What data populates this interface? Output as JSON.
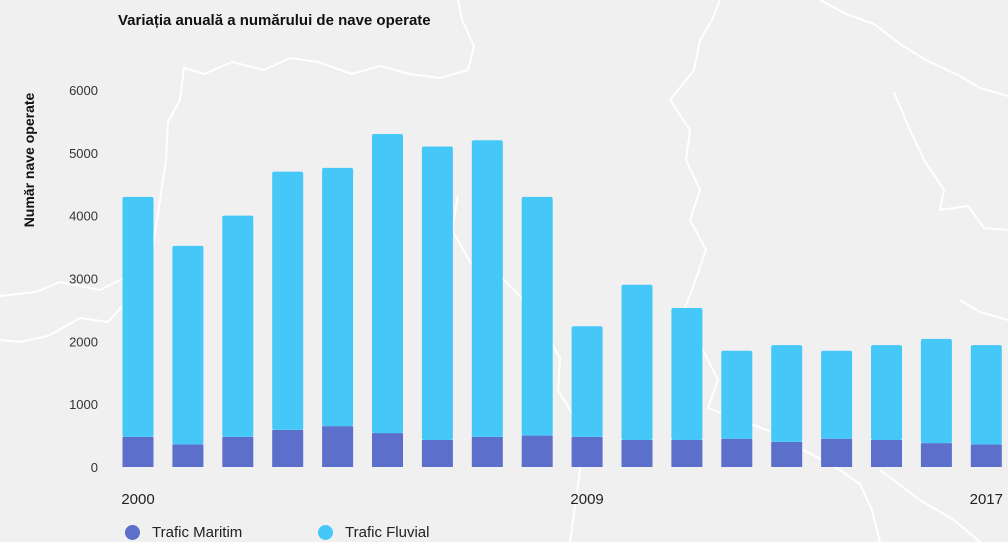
{
  "chart_data": {
    "type": "bar",
    "stacked": true,
    "title": "Variația anuală a numărului de nave operate",
    "xlabel": "",
    "ylabel": "Număr nave operate",
    "ylim": [
      0,
      6000
    ],
    "yticks": [
      0,
      1000,
      2000,
      3000,
      4000,
      5000,
      6000
    ],
    "grid": false,
    "legend_position": "bottom-left",
    "categories": [
      "2000",
      "2001",
      "2002",
      "2003",
      "2004",
      "2005",
      "2006",
      "2007",
      "2008",
      "2009",
      "2010",
      "2011",
      "2012",
      "2013",
      "2014",
      "2015",
      "2016",
      "2017"
    ],
    "x_tick_labels": [
      "2000",
      "2009",
      "2017"
    ],
    "series": [
      {
        "name": "Trafic Maritim",
        "color": "#5b6fcb",
        "values": [
          480,
          360,
          480,
          590,
          650,
          540,
          430,
          480,
          500,
          480,
          430,
          430,
          450,
          400,
          450,
          430,
          380,
          360
        ]
      },
      {
        "name": "Trafic Fluvial",
        "color": "#45c8f8",
        "values": [
          3820,
          3160,
          3520,
          4110,
          4110,
          4760,
          4670,
          4720,
          3800,
          1760,
          2470,
          2100,
          1400,
          1540,
          1400,
          1510,
          1660,
          1580
        ]
      }
    ]
  }
}
